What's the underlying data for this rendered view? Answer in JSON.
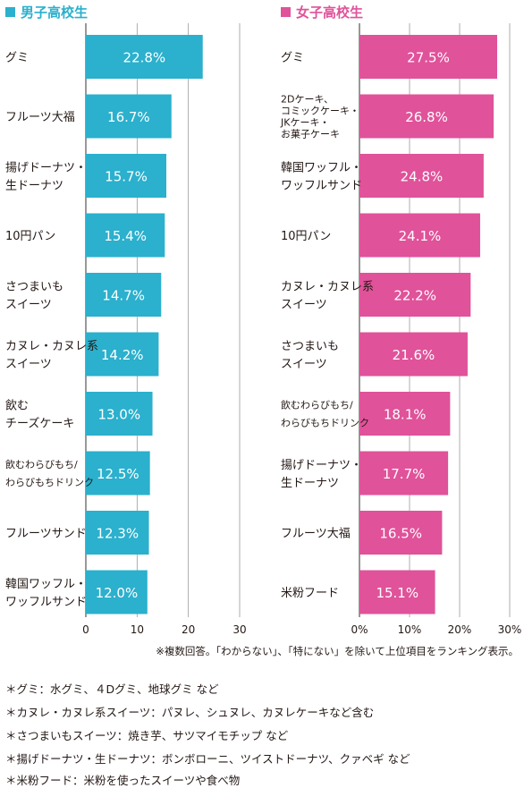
{
  "chart_data": [
    {
      "type": "bar",
      "orientation": "horizontal",
      "title": "男子高校生",
      "color": "#2bb0cd",
      "categories": [
        "グミ",
        "フルーツ大福",
        "揚げドーナツ・\n生ドーナツ",
        "10円パン",
        "さつまいも\nスイーツ",
        "カヌレ・カヌレ系\nスイーツ",
        "飲む\nチーズケーキ",
        "飲むわらびもち/\nわらびもちドリンク",
        "フルーツサンド",
        "韓国ワッフル・\nワッフルサンド"
      ],
      "values": [
        22.8,
        16.7,
        15.7,
        15.4,
        14.7,
        14.2,
        13.0,
        12.5,
        12.3,
        12.0
      ],
      "data_labels": [
        "22.8%",
        "16.7%",
        "15.7%",
        "15.4%",
        "14.7%",
        "14.2%",
        "13.0%",
        "12.5%",
        "12.3%",
        "12.0%"
      ],
      "xlim": [
        0,
        30
      ],
      "ticks": [
        "0",
        "10",
        "20",
        "30"
      ],
      "grid": true
    },
    {
      "type": "bar",
      "orientation": "horizontal",
      "title": "女子高校生",
      "color": "#e0529a",
      "categories": [
        "グミ",
        "2Dケーキ、\nコミックケーキ・\nJKケーキ・\nお菓子ケーキ",
        "韓国ワッフル・\nワッフルサンド",
        "10円パン",
        "カヌレ・カヌレ系\nスイーツ",
        "さつまいも\nスイーツ",
        "飲むわらびもち/\nわらびもちドリンク",
        "揚げドーナツ・\n生ドーナツ",
        "フルーツ大福",
        "米粉フード"
      ],
      "values": [
        27.5,
        26.8,
        24.8,
        24.1,
        22.2,
        21.6,
        18.1,
        17.7,
        16.5,
        15.1
      ],
      "data_labels": [
        "27.5%",
        "26.8%",
        "24.8%",
        "24.1%",
        "22.2%",
        "21.6%",
        "18.1%",
        "17.7%",
        "16.5%",
        "15.1%"
      ],
      "xlim": [
        0,
        30
      ],
      "ticks": [
        "0%",
        "10%",
        "20%",
        "30%"
      ],
      "grid": true
    }
  ],
  "note": "※複数回答。「わからない」、「特にない」を除いて上位項目をランキング表示。",
  "footnotes": [
    "＊グミ：水グミ、４Dグミ、地球グミ など",
    "＊カヌレ・カヌレ系スイーツ：パヌレ、シュヌレ、カヌレケーキなど含む",
    "＊さつまいもスイーツ：焼き芋、サツマイモチップ など",
    "＊揚げドーナツ・生ドーナツ：ボンボローニ、ツイストドーナツ、クァベギ など",
    "＊米粉フード：米粉を使ったスイーツや食べ物"
  ]
}
